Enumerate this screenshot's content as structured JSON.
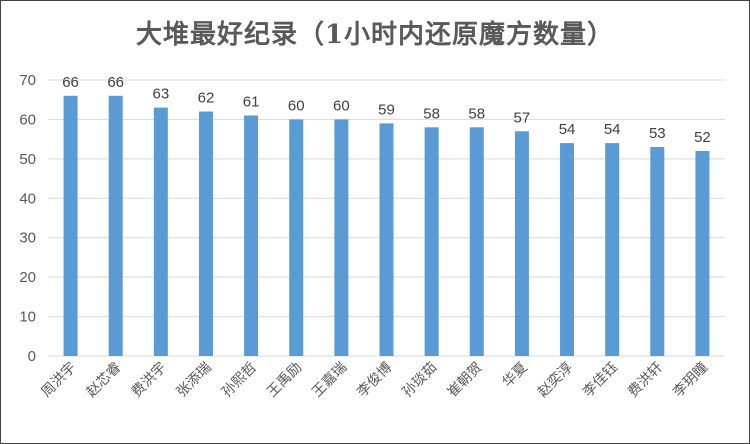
{
  "chart_data": {
    "type": "bar",
    "title": "大堆最好纪录（1小时内还原魔方数量）",
    "categories": [
      "周洪宇",
      "赵芯睿",
      "费洪宇",
      "张添瑞",
      "孙熙哲",
      "王禹励",
      "王嘉瑞",
      "李俊博",
      "孙琰茹",
      "崔朝贺",
      "华夏",
      "赵奕淳",
      "李佳钰",
      "费洪轩",
      "李玥瞳"
    ],
    "values": [
      66,
      66,
      63,
      62,
      61,
      60,
      60,
      59,
      58,
      58,
      57,
      54,
      54,
      53,
      52
    ],
    "ylim": [
      0,
      70
    ],
    "yticks": [
      0,
      10,
      20,
      30,
      40,
      50,
      60,
      70
    ],
    "xlabel": "",
    "ylabel": "",
    "grid": true,
    "data_labels": true,
    "bar_color": "#5b9bd5",
    "grid_color": "#d9d9d9"
  }
}
